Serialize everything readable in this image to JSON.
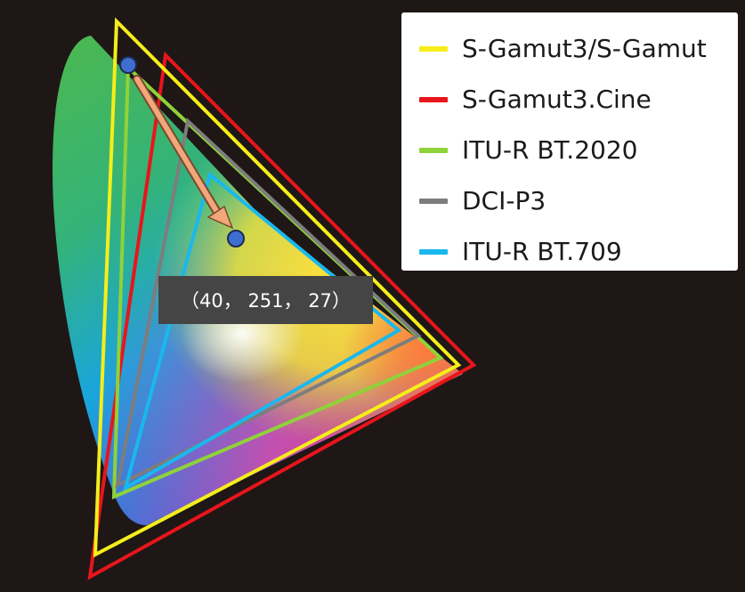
{
  "legend": {
    "items": [
      {
        "label": "S-Gamut3/S-Gamut",
        "color": "#f5ee1a"
      },
      {
        "label": "S-Gamut3.Cine",
        "color": "#e8151b"
      },
      {
        "label": "ITU-R BT.2020",
        "color": "#8fd23a"
      },
      {
        "label": "DCI-P3",
        "color": "#7d7d7d"
      },
      {
        "label": "ITU-R BT.709",
        "color": "#19b8ee"
      }
    ]
  },
  "tooltip": {
    "text": "（40，  251，  27）"
  },
  "colors": {
    "background": "#1e1716",
    "arrow": "#f2a77a",
    "marker_fill": "#3e6fd0"
  }
}
